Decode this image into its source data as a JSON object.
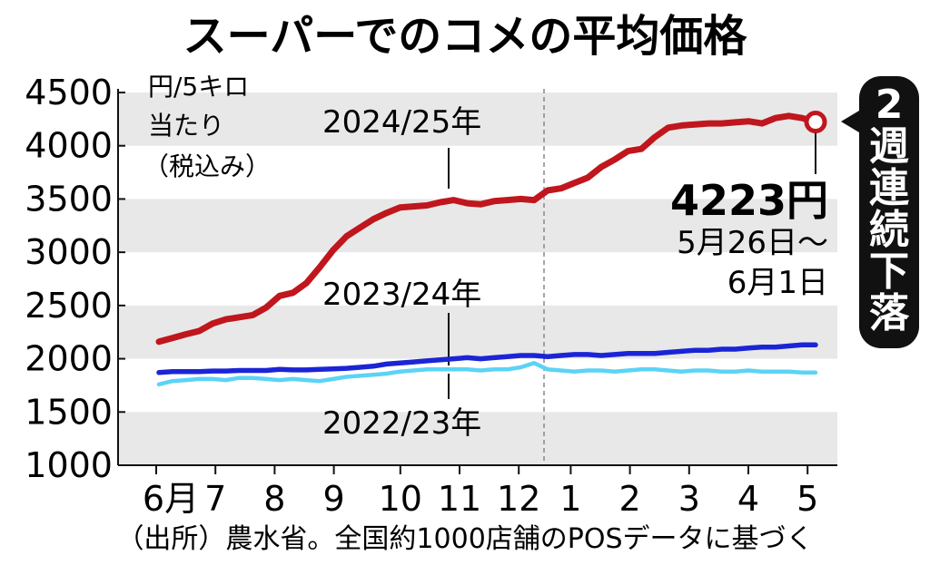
{
  "title": "スーパーでのコメの平均価格",
  "unit_lines": [
    "円/5キロ",
    "当たり",
    "（税込み）"
  ],
  "source": "（出所）農水省。全国約1000店舗のPOSデータに基づく",
  "highlight": {
    "value": "4223円",
    "date_lines": [
      "5月26日～",
      "6月1日"
    ],
    "badge_chars": [
      "2",
      "週",
      "連",
      "続",
      "下",
      "落"
    ]
  },
  "colors": {
    "s2024": "#c0161d",
    "s2023": "#1b25d6",
    "s2022": "#5bd3f5",
    "band": "#e8e8e8",
    "badge": "#111111"
  },
  "chart_data": {
    "type": "line",
    "title": "スーパーでのコメの平均価格",
    "ylabel": "円/5キロ当たり（税込み）",
    "ylim": [
      1000,
      4500
    ],
    "yticks": [
      "4500",
      "4000",
      "3500",
      "3000",
      "2500",
      "2000",
      "1500",
      "1000"
    ],
    "xticks": [
      "6月",
      "7",
      "8",
      "9",
      "10",
      "11",
      "12",
      "1",
      "2",
      "3",
      "4",
      "5"
    ],
    "grid": "alternating horizontal bands",
    "series": [
      {
        "name": "2024/25年",
        "color": "#c0161d",
        "values": [
          2160,
          2195,
          2230,
          2260,
          2330,
          2370,
          2390,
          2410,
          2480,
          2590,
          2620,
          2710,
          2860,
          3020,
          3150,
          3230,
          3310,
          3370,
          3420,
          3430,
          3440,
          3470,
          3490,
          3460,
          3450,
          3480,
          3490,
          3500,
          3490,
          3580,
          3600,
          3650,
          3700,
          3800,
          3870,
          3950,
          3970,
          4080,
          4170,
          4190,
          4200,
          4210,
          4210,
          4220,
          4230,
          4210,
          4260,
          4280,
          4260,
          4223
        ]
      },
      {
        "name": "2023/24年",
        "color": "#1b25d6",
        "values": [
          1870,
          1880,
          1880,
          1880,
          1885,
          1885,
          1890,
          1890,
          1890,
          1900,
          1895,
          1895,
          1900,
          1905,
          1910,
          1920,
          1930,
          1950,
          1960,
          1970,
          1980,
          1990,
          2000,
          2010,
          2000,
          2010,
          2020,
          2030,
          2030,
          2020,
          2030,
          2040,
          2040,
          2030,
          2040,
          2050,
          2050,
          2050,
          2060,
          2070,
          2080,
          2080,
          2090,
          2090,
          2100,
          2110,
          2110,
          2120,
          2130,
          2130
        ]
      },
      {
        "name": "2022/23年",
        "color": "#5bd3f5",
        "values": [
          1760,
          1790,
          1800,
          1810,
          1810,
          1800,
          1820,
          1820,
          1810,
          1800,
          1810,
          1800,
          1790,
          1810,
          1830,
          1840,
          1850,
          1860,
          1880,
          1890,
          1900,
          1900,
          1900,
          1900,
          1890,
          1900,
          1900,
          1920,
          1960,
          1900,
          1890,
          1880,
          1890,
          1890,
          1880,
          1890,
          1900,
          1900,
          1890,
          1880,
          1890,
          1890,
          1880,
          1880,
          1890,
          1880,
          1880,
          1880,
          1870,
          1870
        ]
      }
    ],
    "annotations": [
      {
        "text": "4223円",
        "detail": "5月26日～6月1日"
      },
      {
        "text": "2週連続下落"
      }
    ]
  }
}
